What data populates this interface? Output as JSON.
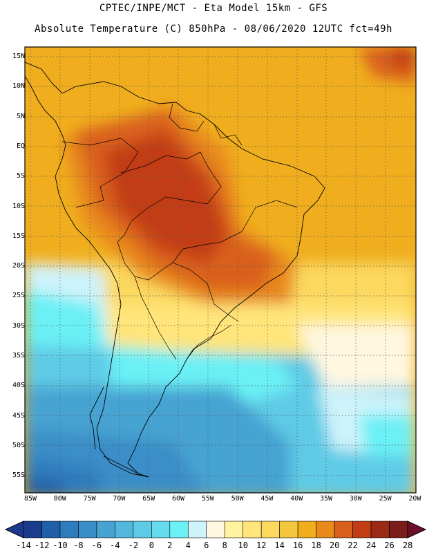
{
  "title_line1": "CPTEC/INPE/MCT -  Eta Model 15km - GFS",
  "title_line2": "Absolute Temperature (C) 850hPa - 08/06/2020 12UTC fct=49h",
  "lat_labels": [
    "15N",
    "10N",
    "5N",
    "EQ",
    "5S",
    "10S",
    "15S",
    "20S",
    "25S",
    "30S",
    "35S",
    "40S",
    "45S",
    "50S",
    "55S"
  ],
  "lon_labels": [
    "85W",
    "80W",
    "75W",
    "70W",
    "65W",
    "60W",
    "55W",
    "50W",
    "45W",
    "40W",
    "35W",
    "30W",
    "25W",
    "20W"
  ],
  "colorbar": {
    "labels": [
      "-14",
      "-12",
      "-10",
      "-8",
      "-6",
      "-4",
      "-2",
      "0",
      "2",
      "4",
      "6",
      "8",
      "10",
      "12",
      "14",
      "16",
      "18",
      "20",
      "22",
      "24",
      "26",
      "28"
    ],
    "colors": [
      "#1a3c8c",
      "#215fa8",
      "#2e7bbd",
      "#3a8ec8",
      "#46a3d2",
      "#52b6dd",
      "#5ecbe6",
      "#64dcee",
      "#6bf0f5",
      "#cdf3fb",
      "#fff7e0",
      "#fff3a0",
      "#ffe57a",
      "#fcd85e",
      "#f5c73c",
      "#f0ae1e",
      "#e8891a",
      "#d9601a",
      "#c23c16",
      "#9b2a14",
      "#7a1d1a"
    ],
    "low_arrow_color": "#1e3a8a",
    "high_arrow_color": "#6e0f2a"
  }
}
